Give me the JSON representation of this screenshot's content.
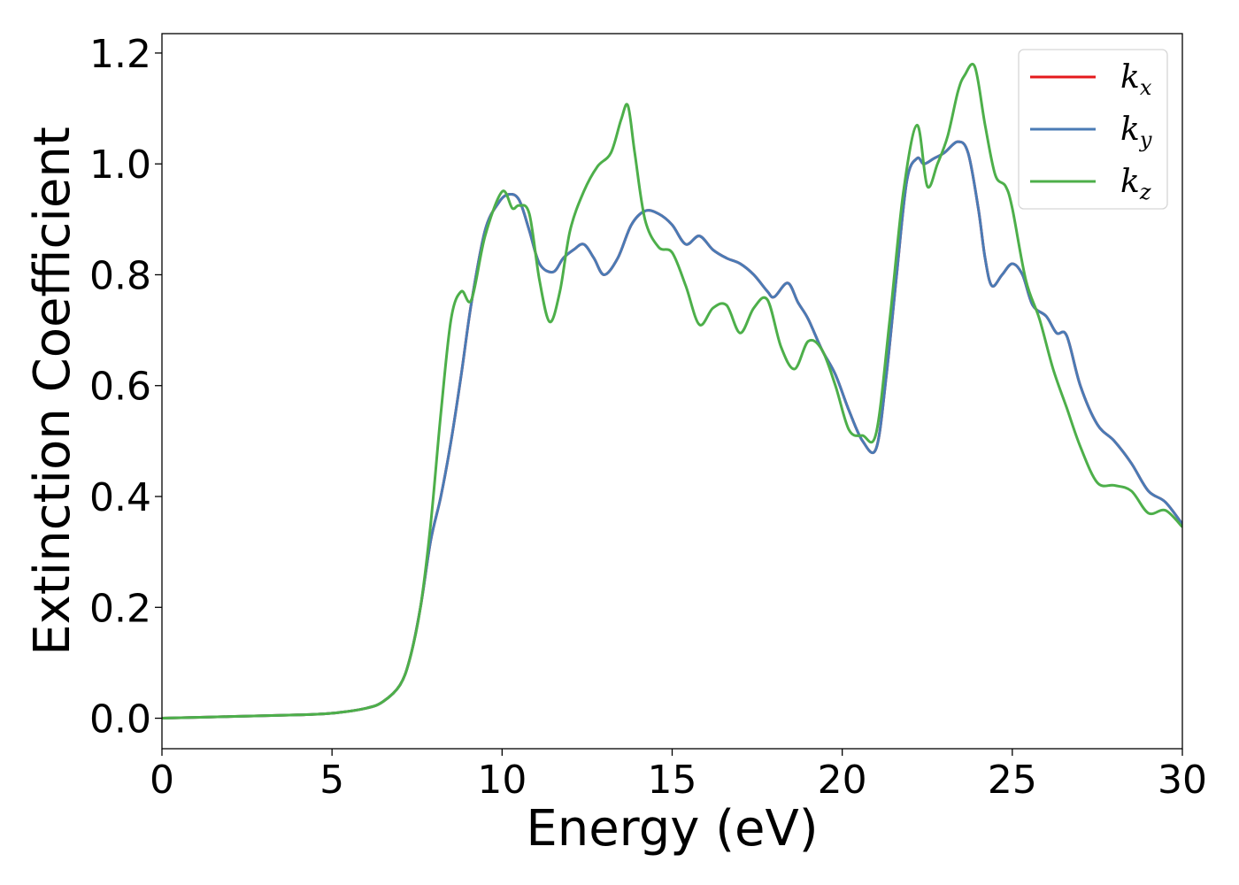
{
  "chart_data": {
    "type": "line",
    "xlabel": "Energy (eV)",
    "ylabel": "Extinction Coefficient",
    "xlim": [
      0,
      30
    ],
    "ylim": [
      -0.055,
      1.235
    ],
    "xticks": [
      0,
      5,
      10,
      15,
      20,
      25,
      30
    ],
    "yticks": [
      0.0,
      0.2,
      0.4,
      0.6,
      0.8,
      1.0,
      1.2
    ],
    "xtick_labels": [
      "0",
      "5",
      "10",
      "15",
      "20",
      "25",
      "30"
    ],
    "ytick_labels": [
      "0.0",
      "0.2",
      "0.4",
      "0.6",
      "0.8",
      "1.0",
      "1.2"
    ],
    "grid": false,
    "legend_position": "top-right",
    "series": [
      {
        "name": "k_x",
        "legend_base": "k",
        "legend_sub": "x",
        "color": "#e41a1c",
        "x": [
          0,
          2,
          4,
          5,
          6,
          6.5,
          7,
          7.3,
          7.6,
          7.9,
          8.2,
          8.5,
          8.8,
          9.1,
          9.5,
          9.9,
          10.2,
          10.5,
          10.8,
          11.1,
          11.5,
          11.8,
          12.1,
          12.4,
          12.7,
          13.0,
          13.4,
          13.8,
          14.2,
          14.6,
          15.0,
          15.4,
          15.8,
          16.2,
          16.6,
          17.0,
          17.4,
          17.8,
          18.0,
          18.4,
          18.7,
          19.0,
          19.4,
          19.8,
          20.2,
          20.6,
          21.0,
          21.3,
          21.6,
          21.9,
          22.2,
          22.4,
          22.7,
          23.0,
          23.4,
          23.7,
          24.0,
          24.2,
          24.4,
          24.7,
          25.0,
          25.3,
          25.6,
          26.0,
          26.3,
          26.6,
          27.0,
          27.5,
          28.0,
          28.5,
          29.0,
          29.5,
          30.0
        ],
        "y": [
          0.0,
          0.003,
          0.006,
          0.009,
          0.018,
          0.03,
          0.06,
          0.11,
          0.2,
          0.32,
          0.4,
          0.5,
          0.62,
          0.75,
          0.88,
          0.93,
          0.945,
          0.935,
          0.88,
          0.82,
          0.805,
          0.83,
          0.845,
          0.855,
          0.83,
          0.8,
          0.83,
          0.89,
          0.915,
          0.91,
          0.89,
          0.855,
          0.87,
          0.845,
          0.83,
          0.82,
          0.8,
          0.77,
          0.76,
          0.785,
          0.75,
          0.72,
          0.665,
          0.62,
          0.555,
          0.5,
          0.487,
          0.62,
          0.8,
          0.97,
          1.01,
          1.0,
          1.01,
          1.02,
          1.04,
          1.02,
          0.92,
          0.83,
          0.78,
          0.8,
          0.82,
          0.8,
          0.745,
          0.725,
          0.695,
          0.69,
          0.6,
          0.53,
          0.5,
          0.46,
          0.41,
          0.39,
          0.35
        ]
      },
      {
        "name": "k_y",
        "legend_base": "k",
        "legend_sub": "y",
        "color": "#4a7bb5",
        "x": [
          0,
          2,
          4,
          5,
          6,
          6.5,
          7,
          7.3,
          7.6,
          7.9,
          8.2,
          8.5,
          8.8,
          9.1,
          9.5,
          9.9,
          10.2,
          10.5,
          10.8,
          11.1,
          11.5,
          11.8,
          12.1,
          12.4,
          12.7,
          13.0,
          13.4,
          13.8,
          14.2,
          14.6,
          15.0,
          15.4,
          15.8,
          16.2,
          16.6,
          17.0,
          17.4,
          17.8,
          18.0,
          18.4,
          18.7,
          19.0,
          19.4,
          19.8,
          20.2,
          20.6,
          21.0,
          21.3,
          21.6,
          21.9,
          22.2,
          22.4,
          22.7,
          23.0,
          23.4,
          23.7,
          24.0,
          24.2,
          24.4,
          24.7,
          25.0,
          25.3,
          25.6,
          26.0,
          26.3,
          26.6,
          27.0,
          27.5,
          28.0,
          28.5,
          29.0,
          29.5,
          30.0
        ],
        "y": [
          0.0,
          0.003,
          0.006,
          0.009,
          0.018,
          0.03,
          0.06,
          0.11,
          0.2,
          0.32,
          0.4,
          0.5,
          0.62,
          0.75,
          0.88,
          0.93,
          0.945,
          0.935,
          0.88,
          0.82,
          0.805,
          0.83,
          0.845,
          0.855,
          0.83,
          0.8,
          0.83,
          0.89,
          0.915,
          0.91,
          0.89,
          0.855,
          0.87,
          0.845,
          0.83,
          0.82,
          0.8,
          0.77,
          0.76,
          0.785,
          0.75,
          0.72,
          0.665,
          0.62,
          0.555,
          0.5,
          0.487,
          0.62,
          0.8,
          0.97,
          1.01,
          1.0,
          1.01,
          1.02,
          1.04,
          1.02,
          0.92,
          0.83,
          0.78,
          0.8,
          0.82,
          0.8,
          0.745,
          0.725,
          0.695,
          0.69,
          0.6,
          0.53,
          0.5,
          0.46,
          0.41,
          0.39,
          0.35
        ]
      },
      {
        "name": "k_z",
        "legend_base": "k",
        "legend_sub": "z",
        "color": "#4daf4a",
        "x": [
          0,
          2,
          4,
          5,
          6,
          6.5,
          7,
          7.3,
          7.6,
          7.9,
          8.2,
          8.5,
          8.8,
          9.1,
          9.5,
          10.0,
          10.3,
          10.5,
          10.8,
          11.1,
          11.4,
          11.7,
          12.0,
          12.4,
          12.8,
          13.2,
          13.5,
          13.7,
          13.9,
          14.2,
          14.6,
          15.0,
          15.4,
          15.8,
          16.2,
          16.6,
          17.0,
          17.4,
          17.8,
          18.2,
          18.6,
          19.0,
          19.4,
          19.8,
          20.2,
          20.6,
          21.0,
          21.4,
          21.8,
          22.2,
          22.5,
          22.8,
          23.1,
          23.4,
          23.6,
          23.9,
          24.2,
          24.5,
          24.8,
          25.0,
          25.4,
          25.8,
          26.2,
          26.6,
          27.0,
          27.5,
          28.0,
          28.5,
          29.0,
          29.5,
          30.0
        ],
        "y": [
          0.0,
          0.003,
          0.006,
          0.009,
          0.018,
          0.03,
          0.06,
          0.11,
          0.2,
          0.35,
          0.55,
          0.72,
          0.77,
          0.755,
          0.87,
          0.95,
          0.92,
          0.925,
          0.91,
          0.79,
          0.715,
          0.77,
          0.88,
          0.95,
          0.995,
          1.02,
          1.08,
          1.105,
          1.02,
          0.9,
          0.85,
          0.84,
          0.78,
          0.71,
          0.74,
          0.745,
          0.695,
          0.74,
          0.755,
          0.67,
          0.63,
          0.68,
          0.665,
          0.6,
          0.52,
          0.51,
          0.515,
          0.72,
          0.95,
          1.07,
          0.96,
          1.0,
          1.05,
          1.13,
          1.16,
          1.175,
          1.07,
          0.98,
          0.96,
          0.92,
          0.79,
          0.72,
          0.63,
          0.56,
          0.49,
          0.425,
          0.42,
          0.41,
          0.37,
          0.375,
          0.345
        ]
      }
    ]
  }
}
